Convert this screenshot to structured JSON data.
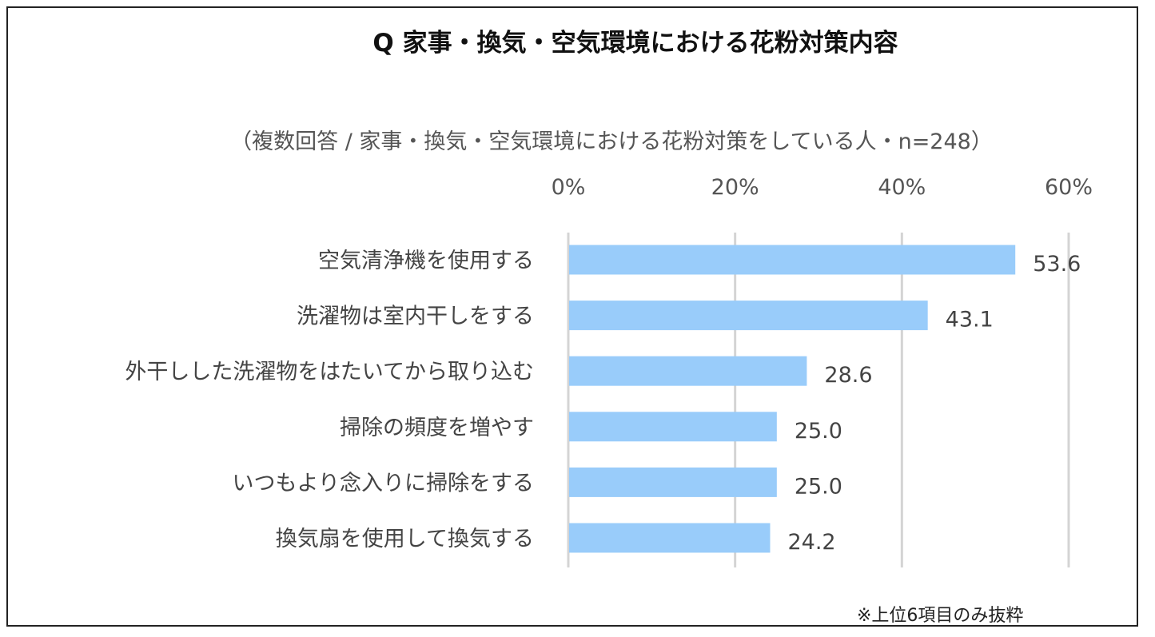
{
  "chart_data": {
    "type": "bar",
    "orientation": "horizontal",
    "title": "Q 家事・換気・空気環境における花粉対策内容",
    "subtitle": "（複数回答 / 家事・換気・空気環境における花粉対策をしている人・n=248）",
    "categories": [
      "空気清浄機を使用する",
      "洗濯物は室内干しをする",
      "外干しした洗濯物をはたいてから取り込む",
      "掃除の頻度を増やす",
      "いつもより念入りに掃除をする",
      "換気扇を使用して換気する"
    ],
    "values": [
      53.6,
      43.1,
      28.6,
      25.0,
      25.0,
      24.2
    ],
    "value_labels": [
      "53.6",
      "43.1",
      "28.6",
      "25.0",
      "25.0",
      "24.2"
    ],
    "xlim": [
      0,
      60
    ],
    "ticks": [
      0,
      20,
      40,
      60
    ],
    "tick_labels": [
      "0%",
      "20%",
      "40%",
      "60%"
    ],
    "grid": true,
    "bar_color": "#99ccfa",
    "note": "※上位6項目のみ抜粋"
  }
}
